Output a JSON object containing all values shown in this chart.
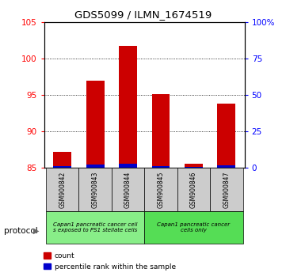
{
  "title": "GDS5099 / ILMN_1674519",
  "samples": [
    "GSM900842",
    "GSM900843",
    "GSM900844",
    "GSM900845",
    "GSM900846",
    "GSM900847"
  ],
  "count_values": [
    87.2,
    97.0,
    101.8,
    95.2,
    85.6,
    93.8
  ],
  "percentile_values": [
    1.5,
    2.5,
    3.0,
    1.5,
    1.0,
    1.8
  ],
  "base_value": 85,
  "ylim_left": [
    85,
    105
  ],
  "ylim_right": [
    0,
    100
  ],
  "yticks_left": [
    85,
    90,
    95,
    100,
    105
  ],
  "yticks_right": [
    0,
    25,
    50,
    75,
    100
  ],
  "ytick_labels_right": [
    "0",
    "25",
    "50",
    "75",
    "100%"
  ],
  "bar_color_red": "#cc0000",
  "bar_color_blue": "#0000cc",
  "protocol_groups": [
    {
      "label": "Capan1 pancreatic cancer cell\ns exposed to PS1 stellate cells",
      "samples": [
        0,
        1,
        2
      ],
      "color": "#88ee88"
    },
    {
      "label": "Capan1 pancreatic cancer\ncells only",
      "samples": [
        3,
        4,
        5
      ],
      "color": "#55dd55"
    }
  ],
  "legend_count_label": "count",
  "legend_pct_label": "percentile rank within the sample",
  "protocol_label": "protocol",
  "bar_width": 0.55
}
